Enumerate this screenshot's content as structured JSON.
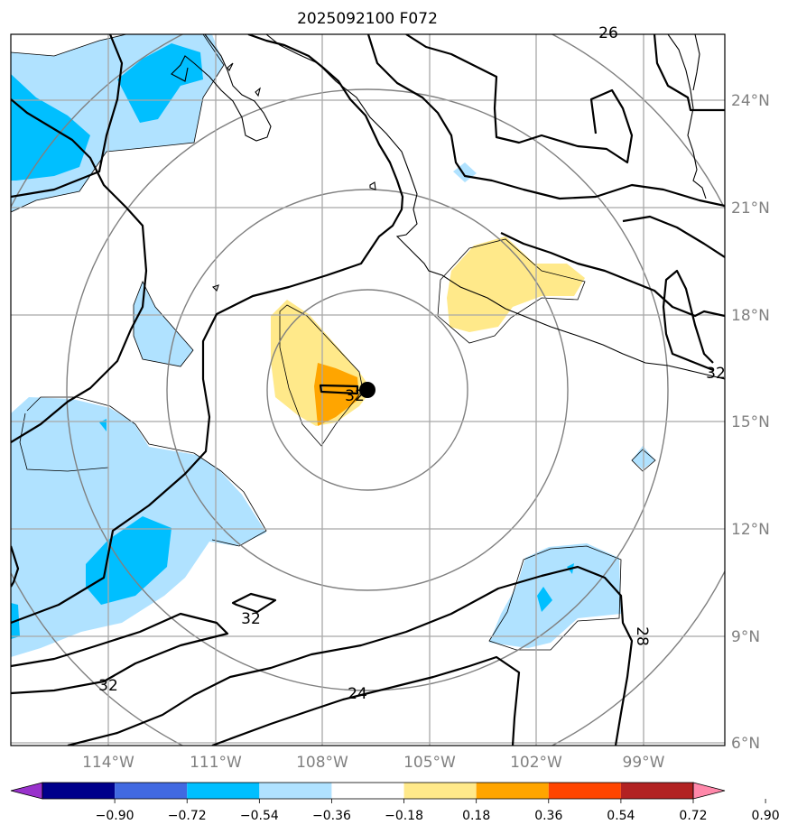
{
  "title": "2025092100 F072",
  "lat_labels": [
    "24°N",
    "21°N",
    "18°N",
    "15°N",
    "12°N",
    "9°N",
    "6°N"
  ],
  "lon_labels": [
    "114°W",
    "111°W",
    "108°W",
    "105°W",
    "102°W",
    "99°W"
  ],
  "contour_labels": {
    "c26_top": "26",
    "c32_east": "32",
    "c32_center": "32",
    "c32_sw": "32",
    "c32_bottom": "32",
    "c24": "24",
    "c28": "28"
  },
  "colorbar": {
    "ticks": [
      "−0.90",
      "−0.72",
      "−0.54",
      "−0.36",
      "−0.18",
      "0.18",
      "0.36",
      "0.54",
      "0.72",
      "0.90"
    ],
    "colors": [
      "#9932cc",
      "#00008b",
      "#4169e1",
      "#00bfff",
      "#b0e2ff",
      "#ffffff",
      "#ffe98a",
      "#ffa500",
      "#ff4500",
      "#b22222",
      "#ff88aa"
    ]
  },
  "storm_center": {
    "lat": 15.9,
    "lon": -106.3
  }
}
